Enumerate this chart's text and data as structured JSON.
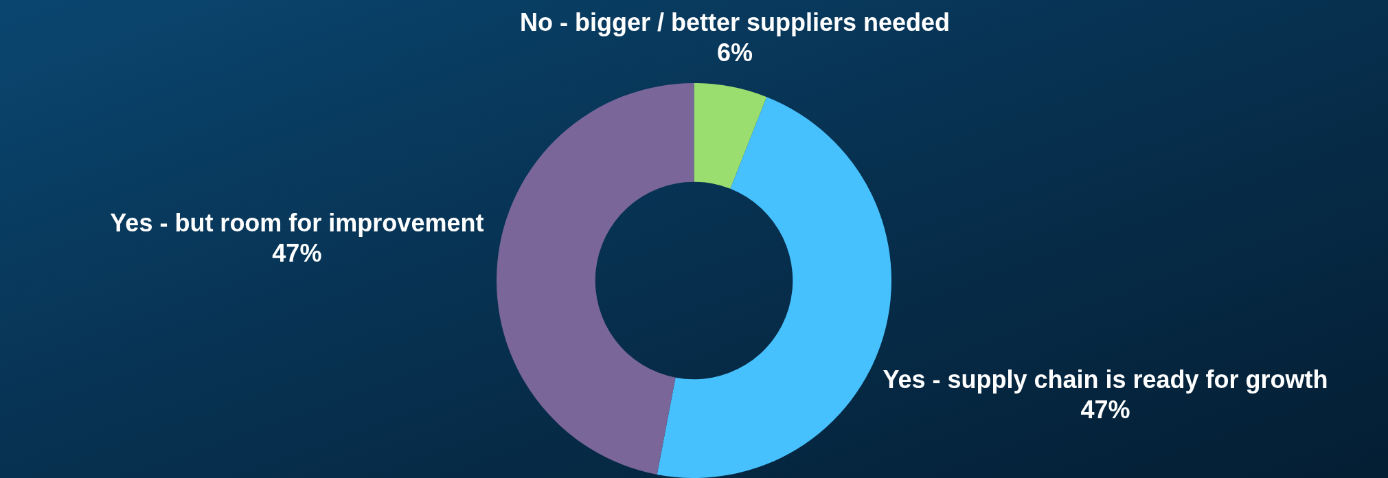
{
  "chart_data": {
    "type": "donut",
    "categories": [
      "No - bigger / better suppliers needed",
      "Yes - supply chain is ready for growth",
      "Yes - but room for improvement"
    ],
    "values": [
      6,
      47,
      47
    ],
    "colors": [
      "#9ade6f",
      "#47c1fd",
      "#7a6699"
    ],
    "value_labels": [
      "6%",
      "47%",
      "47%"
    ]
  }
}
